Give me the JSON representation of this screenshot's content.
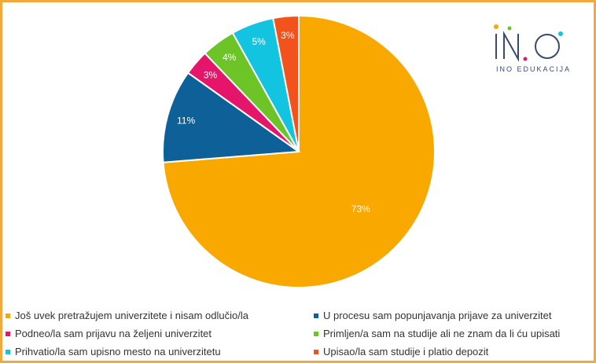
{
  "logo": {
    "subtitle": "INO EDUKACIJA"
  },
  "chart_data": {
    "type": "pie",
    "title": "",
    "slices": [
      {
        "label": "Još uvek pretražujem univerzitete i nisam odlučio/la",
        "value": 73,
        "display": "73%",
        "color": "#f9a800"
      },
      {
        "label": "U procesu sam popunjavanja prijave za univerzitet",
        "value": 11,
        "display": "11%",
        "color": "#0d6198"
      },
      {
        "label": "Podneo/la sam prijavu na željeni univerzitet",
        "value": 3,
        "display": "3%",
        "color": "#e5156c"
      },
      {
        "label": "Primljen/a sam na studije ali ne znam da li ću upisati",
        "value": 4,
        "display": "4%",
        "color": "#6cc427"
      },
      {
        "label": "Prihvatio/la sam upisno mesto na univerzitetu",
        "value": 5,
        "display": "5%",
        "color": "#12c4e0"
      },
      {
        "label": "Upisao/la sam studije i platio depozit",
        "value": 3,
        "display": "3%",
        "color": "#f2521c"
      }
    ],
    "legend_position": "bottom"
  }
}
